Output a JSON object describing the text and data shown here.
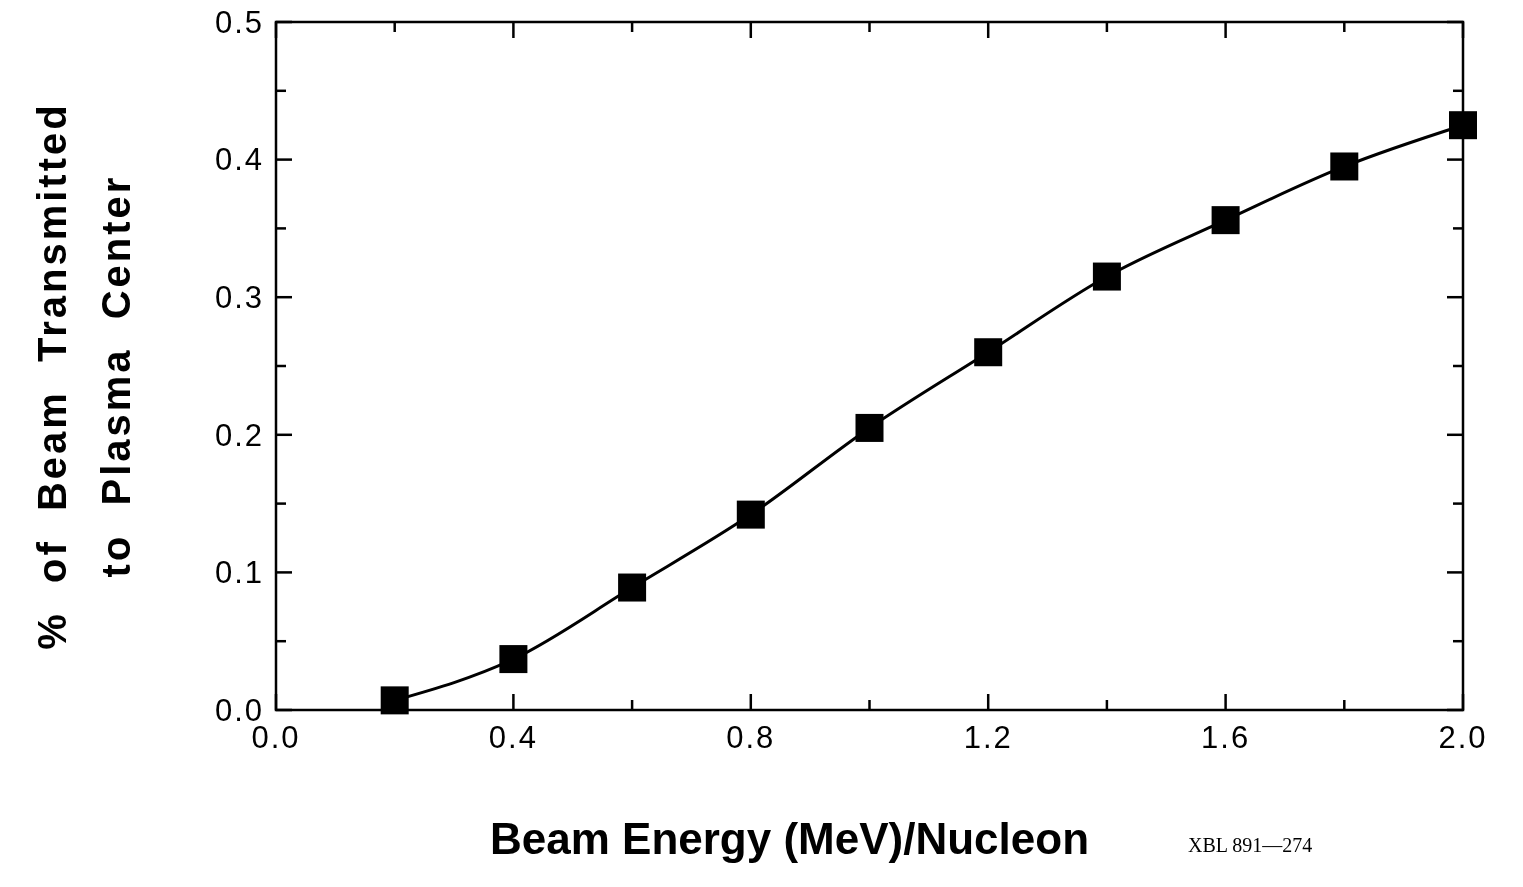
{
  "chart_data": {
    "type": "line",
    "xlabel": "Beam Energy (MeV)/Nucleon",
    "ylabel": "% of Beam Transmitted\nto Plasma Center",
    "x": [
      0.2,
      0.4,
      0.6,
      0.8,
      1.0,
      1.2,
      1.4,
      1.6,
      1.8,
      2.0
    ],
    "series": [
      {
        "color": "#000000",
        "values": [
          0.007,
          0.037,
          0.089,
          0.142,
          0.205,
          0.26,
          0.315,
          0.356,
          0.395,
          0.425
        ]
      }
    ],
    "marker": "square",
    "line_style": "solid",
    "grid": false,
    "xlim": [
      0,
      2
    ],
    "ylim": [
      0,
      0.5
    ],
    "xticks": [
      {
        "value": 0,
        "label": "0.0"
      },
      {
        "value": 0.2,
        "label": null
      },
      {
        "value": 0.4,
        "label": "0.4"
      },
      {
        "value": 0.6,
        "label": null
      },
      {
        "value": 0.8,
        "label": "0.8"
      },
      {
        "value": 1.0,
        "label": null
      },
      {
        "value": 1.2,
        "label": "1.2"
      },
      {
        "value": 1.4,
        "label": null
      },
      {
        "value": 1.6,
        "label": "1.6"
      },
      {
        "value": 1.8,
        "label": null
      },
      {
        "value": 2.0,
        "label": "2.0"
      }
    ],
    "yticks": [
      {
        "value": 0,
        "label": "0.0"
      },
      {
        "value": 0.05,
        "label": null
      },
      {
        "value": 0.1,
        "label": "0.1"
      },
      {
        "value": 0.15,
        "label": null
      },
      {
        "value": 0.2,
        "label": "0.2"
      },
      {
        "value": 0.25,
        "label": null
      },
      {
        "value": 0.3,
        "label": "0.3"
      },
      {
        "value": 0.35,
        "label": null
      },
      {
        "value": 0.4,
        "label": "0.4"
      },
      {
        "value": 0.45,
        "label": null
      },
      {
        "value": 0.5,
        "label": "0.5"
      }
    ],
    "annotations": [
      "XBL 891—274"
    ]
  }
}
